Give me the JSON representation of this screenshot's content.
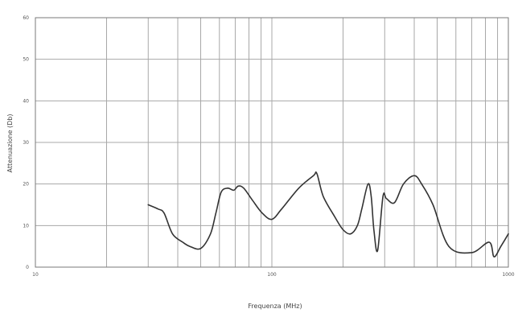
{
  "chart_data": {
    "type": "line",
    "title": "",
    "xlabel": "Frequenza (MHz)",
    "ylabel": "Attenuazione (Db)",
    "x_scale": "log",
    "xlim": [
      10,
      1000
    ],
    "ylim": [
      0,
      60
    ],
    "x_ticks": [
      10,
      100,
      1000
    ],
    "x_tick_labels": [
      "10",
      "100",
      "1000"
    ],
    "y_ticks": [
      0,
      10,
      20,
      30,
      40,
      50,
      60
    ],
    "y_tick_labels": [
      "0",
      "10",
      "20",
      "30",
      "40",
      "50",
      "60"
    ],
    "grid": true,
    "series": [
      {
        "x": [
          30,
          33,
          35,
          38,
          42,
          45,
          50,
          55,
          58,
          61,
          65,
          69,
          72,
          76,
          83,
          91,
          100,
          110,
          130,
          150,
          155,
          165,
          185,
          200,
          215,
          230,
          240,
          255,
          263,
          270,
          280,
          295,
          305,
          330,
          360,
          400,
          430,
          480,
          560,
          700,
          830,
          870,
          930,
          1000
        ],
        "y": [
          15,
          14,
          13,
          8,
          6,
          5,
          4.5,
          8,
          13,
          18,
          19,
          18.5,
          19.5,
          19,
          16,
          13,
          11.5,
          14,
          19,
          22,
          22.5,
          17,
          12,
          9,
          8,
          10,
          14,
          20,
          17,
          9,
          4,
          17,
          16.5,
          15.5,
          20,
          22,
          20,
          15,
          5,
          3.5,
          6,
          2.5,
          5,
          8
        ]
      }
    ],
    "colors": {
      "line": "#333333",
      "grid": "#a8a8a8"
    }
  }
}
